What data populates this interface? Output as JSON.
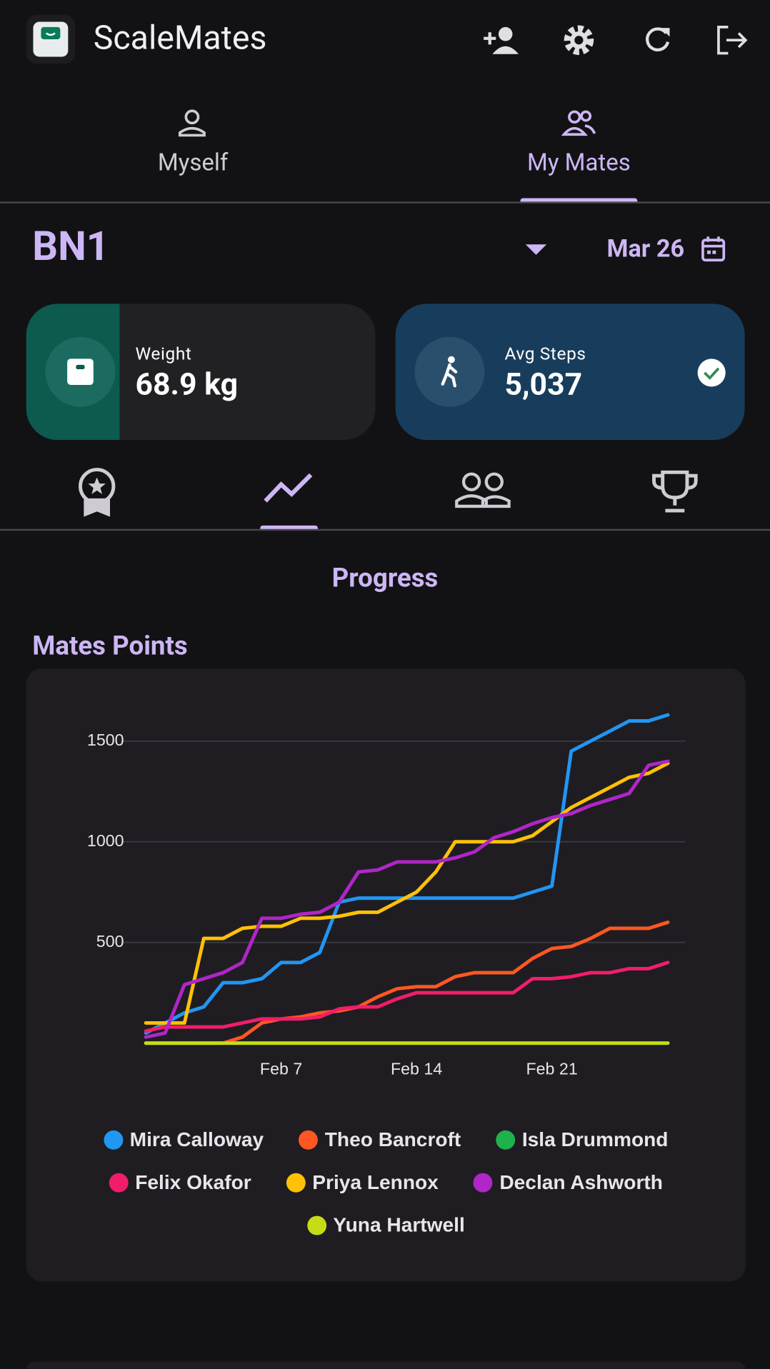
{
  "app_bar": {
    "title": "ScaleMates"
  },
  "tabs": [
    "Myself",
    "My Mates"
  ],
  "group": {
    "name": "BN1",
    "date": "Mar 26"
  },
  "cards": {
    "weight": {
      "label": "Weight",
      "value": "68.9 kg"
    },
    "steps": {
      "label": "Avg Steps",
      "value": "5,037"
    }
  },
  "section_title": "Progress",
  "chart_data": {
    "type": "line",
    "title": "Mates Points",
    "x": [
      "Jan 31",
      "Feb 1",
      "Feb 2",
      "Feb 3",
      "Feb 4",
      "Feb 5",
      "Feb 6",
      "Feb 7",
      "Feb 8",
      "Feb 9",
      "Feb 10",
      "Feb 11",
      "Feb 12",
      "Feb 13",
      "Feb 14",
      "Feb 15",
      "Feb 16",
      "Feb 17",
      "Feb 18",
      "Feb 19",
      "Feb 20",
      "Feb 21",
      "Feb 22",
      "Feb 23",
      "Feb 24",
      "Feb 25",
      "Feb 26",
      "Feb 27"
    ],
    "xticks": [
      "Feb 7",
      "Feb 14",
      "Feb 21"
    ],
    "ylim": [
      0,
      1650
    ],
    "yticks": [
      500,
      1000,
      1500
    ],
    "grid": true,
    "series": [
      {
        "name": "Mira Calloway",
        "color": "#2196f3",
        "values": [
          50,
          100,
          150,
          180,
          300,
          300,
          320,
          400,
          400,
          450,
          700,
          720,
          720,
          720,
          720,
          720,
          720,
          720,
          720,
          720,
          750,
          780,
          1450,
          1500,
          1550,
          1600,
          1600,
          1630
        ]
      },
      {
        "name": "Theo Bancroft",
        "color": "#ff5722",
        "values": [
          0,
          0,
          0,
          0,
          0,
          30,
          100,
          120,
          130,
          150,
          160,
          180,
          230,
          270,
          280,
          280,
          330,
          350,
          350,
          350,
          420,
          470,
          480,
          520,
          570,
          570,
          570,
          600
        ]
      },
      {
        "name": "Isla Drummond",
        "color": "#1fb14b",
        "values": [
          0,
          0,
          0,
          0,
          0,
          0,
          0,
          0,
          0,
          0,
          0,
          0,
          0,
          0,
          0,
          0,
          0,
          0,
          0,
          0,
          0,
          0,
          0,
          0,
          0,
          0,
          0,
          0
        ]
      },
      {
        "name": "Felix Okafor",
        "color": "#f21d6a",
        "values": [
          60,
          80,
          80,
          80,
          80,
          100,
          120,
          120,
          120,
          130,
          170,
          180,
          180,
          220,
          250,
          250,
          250,
          250,
          250,
          250,
          320,
          320,
          330,
          350,
          350,
          370,
          370,
          400
        ]
      },
      {
        "name": "Priya Lennox",
        "color": "#ffc107",
        "values": [
          100,
          100,
          100,
          520,
          520,
          570,
          580,
          580,
          620,
          620,
          630,
          650,
          650,
          700,
          750,
          850,
          1000,
          1000,
          1000,
          1000,
          1030,
          1100,
          1170,
          1220,
          1270,
          1320,
          1340,
          1390
        ]
      },
      {
        "name": "Declan Ashworth",
        "color": "#b026c7",
        "values": [
          30,
          50,
          290,
          320,
          350,
          400,
          620,
          620,
          640,
          650,
          700,
          850,
          860,
          900,
          900,
          900,
          920,
          950,
          1020,
          1050,
          1090,
          1120,
          1140,
          1180,
          1210,
          1240,
          1380,
          1400
        ]
      },
      {
        "name": "Yuna Hartwell",
        "color": "#c6dc16",
        "values": [
          0,
          0,
          0,
          0,
          0,
          0,
          0,
          0,
          0,
          0,
          0,
          0,
          0,
          0,
          0,
          0,
          0,
          0,
          0,
          0,
          0,
          0,
          0,
          0,
          0,
          0,
          0,
          0
        ]
      }
    ]
  }
}
